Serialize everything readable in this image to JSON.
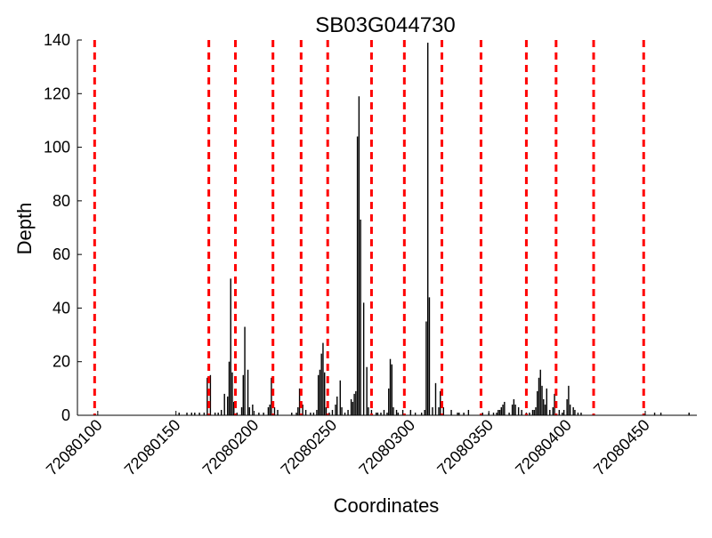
{
  "chart_data": {
    "type": "bar",
    "title": "SB03G044730",
    "xlabel": "Coordinates",
    "ylabel": "Depth",
    "xlim": [
      72080087,
      72080483
    ],
    "ylim": [
      0,
      140
    ],
    "yticks": [
      0,
      20,
      40,
      60,
      80,
      100,
      120,
      140
    ],
    "xticks": [
      72080100,
      72080150,
      72080200,
      72080250,
      72080300,
      72080350,
      72080400,
      72080450
    ],
    "grid": false,
    "legend": "none",
    "bar_color": "#000000",
    "marker_color": "#ff0000",
    "markers_x": [
      72080098,
      72080171,
      72080188,
      72080212,
      72080230,
      72080247,
      72080275,
      72080296,
      72080320,
      72080345,
      72080374,
      72080393,
      72080417,
      72080449
    ],
    "bars": [
      [
        72080152,
        1
      ],
      [
        72080157,
        1
      ],
      [
        72080160,
        1
      ],
      [
        72080162,
        1
      ],
      [
        72080165,
        1
      ],
      [
        72080168,
        1
      ],
      [
        72080170,
        14
      ],
      [
        72080172,
        15
      ],
      [
        72080175,
        1
      ],
      [
        72080177,
        1
      ],
      [
        72080179,
        2
      ],
      [
        72080181,
        8
      ],
      [
        72080183,
        7
      ],
      [
        72080184,
        20
      ],
      [
        72080185,
        51
      ],
      [
        72080186,
        16
      ],
      [
        72080187,
        5
      ],
      [
        72080189,
        1
      ],
      [
        72080192,
        3
      ],
      [
        72080193,
        15
      ],
      [
        72080194,
        33
      ],
      [
        72080196,
        17
      ],
      [
        72080197,
        3
      ],
      [
        72080199,
        4
      ],
      [
        72080203,
        1
      ],
      [
        72080206,
        1
      ],
      [
        72080209,
        3
      ],
      [
        72080210,
        4
      ],
      [
        72080211,
        14
      ],
      [
        72080213,
        3
      ],
      [
        72080215,
        2
      ],
      [
        72080224,
        1
      ],
      [
        72080227,
        1
      ],
      [
        72080228,
        3
      ],
      [
        72080229,
        10
      ],
      [
        72080231,
        4
      ],
      [
        72080233,
        2
      ],
      [
        72080236,
        1
      ],
      [
        72080238,
        1
      ],
      [
        72080240,
        2
      ],
      [
        72080241,
        15
      ],
      [
        72080242,
        17
      ],
      [
        72080243,
        23
      ],
      [
        72080244,
        27
      ],
      [
        72080245,
        16
      ],
      [
        72080246,
        3
      ],
      [
        72080248,
        1
      ],
      [
        72080250,
        2
      ],
      [
        72080252,
        4
      ],
      [
        72080253,
        7
      ],
      [
        72080255,
        13
      ],
      [
        72080256,
        3
      ],
      [
        72080258,
        1
      ],
      [
        72080260,
        2
      ],
      [
        72080262,
        6
      ],
      [
        72080263,
        5
      ],
      [
        72080264,
        8
      ],
      [
        72080265,
        9
      ],
      [
        72080266,
        104
      ],
      [
        72080267,
        119
      ],
      [
        72080268,
        73
      ],
      [
        72080270,
        42
      ],
      [
        72080272,
        18
      ],
      [
        72080273,
        3
      ],
      [
        72080275,
        2
      ],
      [
        72080278,
        1
      ],
      [
        72080279,
        1
      ],
      [
        72080281,
        1
      ],
      [
        72080283,
        2
      ],
      [
        72080285,
        1
      ],
      [
        72080286,
        10
      ],
      [
        72080287,
        21
      ],
      [
        72080288,
        19
      ],
      [
        72080289,
        3
      ],
      [
        72080291,
        2
      ],
      [
        72080292,
        1
      ],
      [
        72080295,
        2
      ],
      [
        72080300,
        2
      ],
      [
        72080303,
        1
      ],
      [
        72080307,
        1
      ],
      [
        72080309,
        2
      ],
      [
        72080310,
        35
      ],
      [
        72080311,
        139
      ],
      [
        72080312,
        44
      ],
      [
        72080314,
        3
      ],
      [
        72080316,
        12
      ],
      [
        72080318,
        3
      ],
      [
        72080319,
        9
      ],
      [
        72080321,
        3
      ],
      [
        72080326,
        2
      ],
      [
        72080330,
        1
      ],
      [
        72080331,
        1
      ],
      [
        72080334,
        1
      ],
      [
        72080337,
        2
      ],
      [
        72080346,
        1
      ],
      [
        72080350,
        1
      ],
      [
        72080353,
        1
      ],
      [
        72080355,
        1
      ],
      [
        72080356,
        2
      ],
      [
        72080357,
        2
      ],
      [
        72080358,
        3
      ],
      [
        72080359,
        4
      ],
      [
        72080360,
        5
      ],
      [
        72080363,
        1
      ],
      [
        72080365,
        4
      ],
      [
        72080366,
        6
      ],
      [
        72080367,
        4
      ],
      [
        72080369,
        3
      ],
      [
        72080371,
        2
      ],
      [
        72080374,
        1
      ],
      [
        72080376,
        1
      ],
      [
        72080378,
        2
      ],
      [
        72080379,
        2
      ],
      [
        72080380,
        3
      ],
      [
        72080381,
        9
      ],
      [
        72080382,
        14
      ],
      [
        72080383,
        17
      ],
      [
        72080384,
        11
      ],
      [
        72080385,
        6
      ],
      [
        72080386,
        4
      ],
      [
        72080387,
        10
      ],
      [
        72080389,
        2
      ],
      [
        72080391,
        3
      ],
      [
        72080392,
        8
      ],
      [
        72080395,
        2
      ],
      [
        72080397,
        1
      ],
      [
        72080398,
        2
      ],
      [
        72080400,
        6
      ],
      [
        72080401,
        11
      ],
      [
        72080402,
        4
      ],
      [
        72080404,
        3
      ],
      [
        72080405,
        2
      ],
      [
        72080407,
        1
      ],
      [
        72080409,
        1
      ],
      [
        72080456,
        1
      ],
      [
        72080460,
        1
      ],
      [
        72080478,
        1
      ]
    ]
  }
}
